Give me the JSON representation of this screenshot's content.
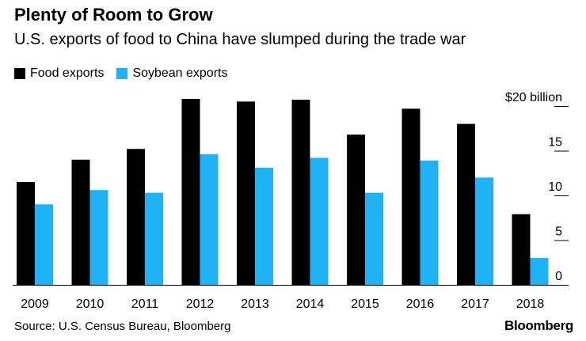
{
  "title": "Plenty of Room to Grow",
  "subtitle": "U.S. exports of food to China have slumped during the trade war",
  "source": "Source: U.S. Census Bureau, Bloomberg",
  "brand": "Bloomberg",
  "colors": {
    "food": "#000000",
    "soybean": "#1fb3f5"
  },
  "chart_data": {
    "type": "bar",
    "categories": [
      "2009",
      "2010",
      "2011",
      "2012",
      "2013",
      "2014",
      "2015",
      "2016",
      "2017",
      "2018"
    ],
    "series": [
      {
        "name": "Food exports",
        "values": [
          11.5,
          14.0,
          15.2,
          20.8,
          20.5,
          20.7,
          16.8,
          19.7,
          18.0,
          7.9
        ]
      },
      {
        "name": "Soybean exports",
        "values": [
          9.0,
          10.6,
          10.3,
          14.6,
          13.1,
          14.2,
          10.3,
          13.9,
          12.0,
          3.0
        ]
      }
    ],
    "yticks": [
      {
        "value": 20,
        "label": "$20 billion"
      },
      {
        "value": 15,
        "label": "15"
      },
      {
        "value": 10,
        "label": "10"
      },
      {
        "value": 5,
        "label": "5"
      },
      {
        "value": 0,
        "label": "0"
      }
    ],
    "ylim": [
      0,
      21
    ],
    "grid": false,
    "legend_position": "top-left"
  }
}
